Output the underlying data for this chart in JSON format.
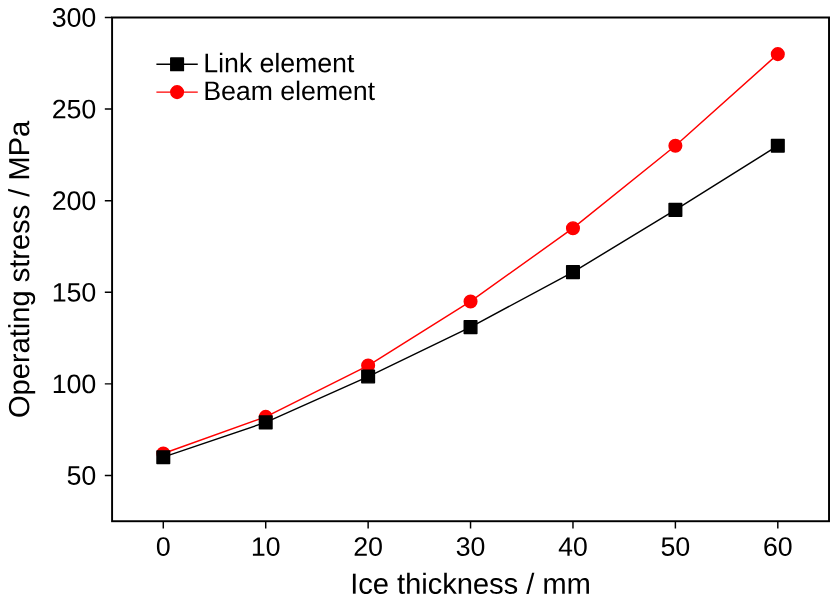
{
  "chart_data": {
    "type": "line",
    "xlabel": "Ice thickness / mm",
    "ylabel": "Operating stress / MPa",
    "x": [
      0,
      10,
      20,
      30,
      40,
      50,
      60
    ],
    "series": [
      {
        "name": "Link element",
        "color": "#000000",
        "marker": "square",
        "values": [
          60,
          79,
          104,
          131,
          161,
          195,
          230
        ]
      },
      {
        "name": "Beam element",
        "color": "#ff0000",
        "marker": "circle",
        "values": [
          62,
          82,
          110,
          145,
          185,
          230,
          280
        ]
      }
    ],
    "xlim": [
      -5,
      65
    ],
    "ylim": [
      25,
      300
    ],
    "xticks": [
      0,
      10,
      20,
      30,
      40,
      50,
      60
    ],
    "yticks": [
      50,
      100,
      150,
      200,
      250,
      300
    ],
    "grid": false,
    "legend": "top left",
    "line_style": "solid"
  }
}
